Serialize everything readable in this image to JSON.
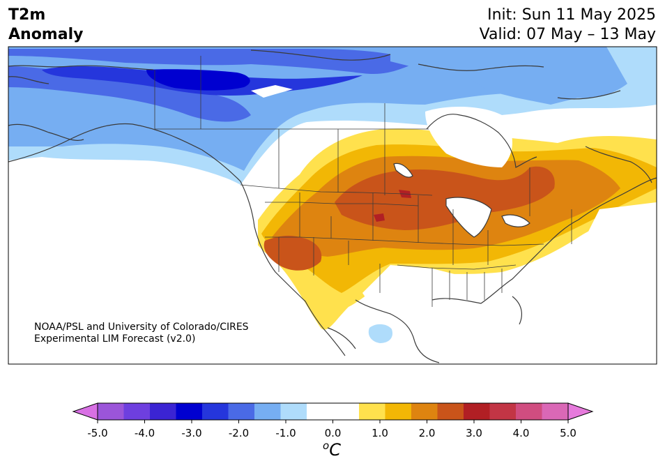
{
  "header": {
    "variable": "T2m",
    "field": "Anomaly",
    "init": "Init: Sun 11 May 2025",
    "valid": "Valid: 07 May – 13 May"
  },
  "credit": {
    "line1": "NOAA/PSL and University of Colorado/CIRES",
    "line2": "Experimental LIM Forecast (v2.0)"
  },
  "colorbar": {
    "unit_symbol": "o",
    "unit_letter": "C",
    "min": -5.0,
    "max": 5.0,
    "ticks": [
      "-5.0",
      "-4.0",
      "-3.0",
      "-2.0",
      "-1.0",
      "0.0",
      "1.0",
      "2.0",
      "3.0",
      "4.0",
      "5.0"
    ],
    "colors": [
      "#9b55d9",
      "#6e3fdf",
      "#3b24d3",
      "#0000d0",
      "#2536dc",
      "#4a6ae6",
      "#76aef2",
      "#afdcfb",
      "#ffffff",
      "#ffffff",
      "#ffe14d",
      "#f2b705",
      "#de8410",
      "#c9541a",
      "#b11f24",
      "#c23545",
      "#d04d80",
      "#da68b6"
    ],
    "low_extend_color": "#d870e4",
    "high_extend_color": "#e67adc"
  },
  "legend_colors": {
    "land_outline": "#3a3a3a",
    "water": "#ffffff"
  }
}
